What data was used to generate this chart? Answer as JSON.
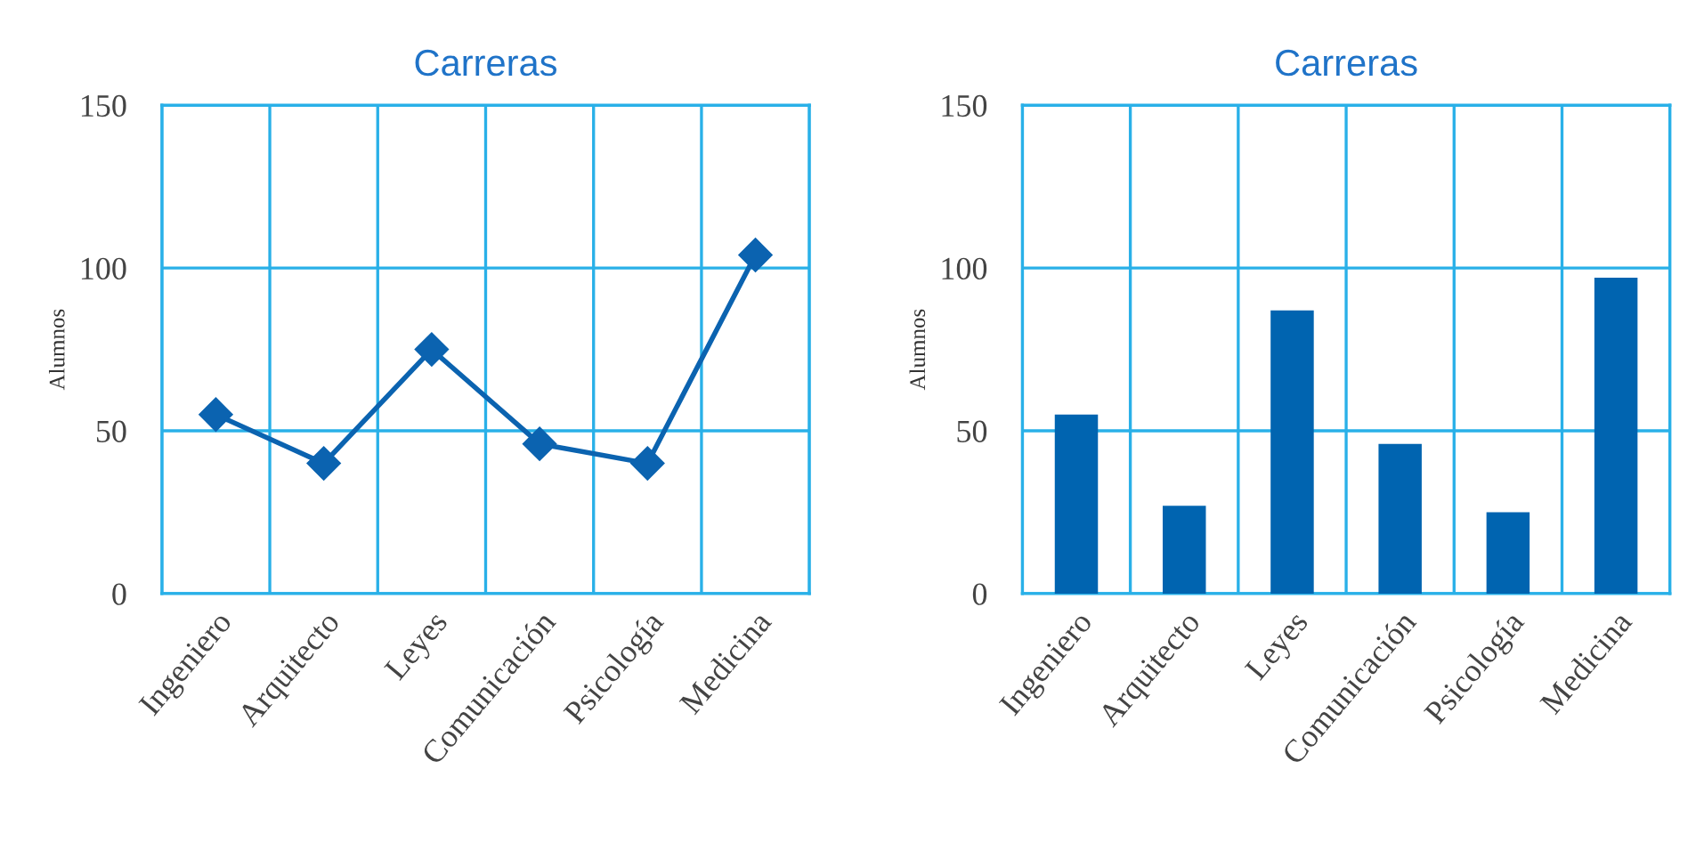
{
  "chart_data": [
    {
      "type": "line",
      "title": "Carreras",
      "ylabel": "Alumnos",
      "categories": [
        "Ingeniero",
        "Arquitecto",
        "Leyes",
        "Comunicación",
        "Psicología",
        "Medicina"
      ],
      "series": [
        {
          "color": "#0b63b0",
          "values": [
            55,
            40,
            75,
            46,
            40,
            104
          ]
        }
      ],
      "marker": "diamond",
      "line_style": "solid",
      "ylim": [
        0,
        150
      ],
      "yticks": [
        0,
        50,
        100,
        150
      ],
      "grid": true
    },
    {
      "type": "bar",
      "title": "Carreras",
      "ylabel": "Alumnos",
      "categories": [
        "Ingeniero",
        "Arquitecto",
        "Leyes",
        "Comunicación",
        "Psicología",
        "Medicina"
      ],
      "series": [
        {
          "color": "#0064b0",
          "values": [
            55,
            27,
            87,
            46,
            25,
            97
          ]
        }
      ],
      "ylim": [
        0,
        150
      ],
      "yticks": [
        0,
        50,
        100,
        150
      ],
      "grid": true
    }
  ]
}
